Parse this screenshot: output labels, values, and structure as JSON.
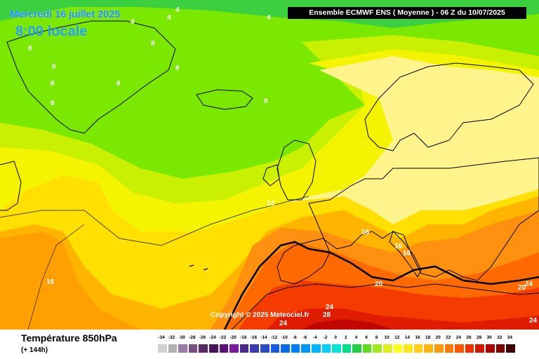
{
  "header": {
    "date": "Mercredi 16 juillet 2025",
    "time": "8:00 locale",
    "model_run": "Ensemble ECMWF ENS  ( Moyenne )  -  06 Z du 10/07/2025"
  },
  "copyright": "Copyright © 2025 Meteociel.fr",
  "footer": {
    "variable": "Température 850hPa",
    "forecast_step": "(+ 144h)"
  },
  "legend": {
    "ticks": [
      "-34",
      "-32",
      "-30",
      "-28",
      "-26",
      "-24",
      "-22",
      "-20",
      "-18",
      "-16",
      "-14",
      "-12",
      "-10",
      "-8",
      "-6",
      "-4",
      "-2",
      "0",
      "2",
      "4",
      "6",
      "8",
      "10",
      "12",
      "14",
      "16",
      "18",
      "20",
      "22",
      "24",
      "26",
      "28",
      "30",
      "32",
      "34"
    ],
    "colors": [
      "#d0d0d0",
      "#b0b0b0",
      "#9a7aa6",
      "#7a4f86",
      "#5a2a66",
      "#4a1360",
      "#5d0f80",
      "#7a1aa0",
      "#4b2a8c",
      "#3a3ab0",
      "#2a4ac8",
      "#1a5ae0",
      "#0a6af0",
      "#007cff",
      "#0096ff",
      "#00b4ff",
      "#00d2ff",
      "#00e6d2",
      "#00e08c",
      "#20d040",
      "#60dc20",
      "#a0e820",
      "#dcf020",
      "#ffff20",
      "#ffe81a",
      "#ffd014",
      "#ffb40e",
      "#ff9808",
      "#ff7800",
      "#ff5400",
      "#f03000",
      "#d01800",
      "#b00000",
      "#800000",
      "#400000"
    ]
  },
  "contour_labels": [
    "4",
    "4",
    "4",
    "4",
    "8",
    "8",
    "8",
    "8",
    "8",
    "8",
    "8",
    "8",
    "12",
    "16",
    "16",
    "16",
    "16",
    "20",
    "20",
    "24",
    "24",
    "24",
    "24",
    "28"
  ]
}
